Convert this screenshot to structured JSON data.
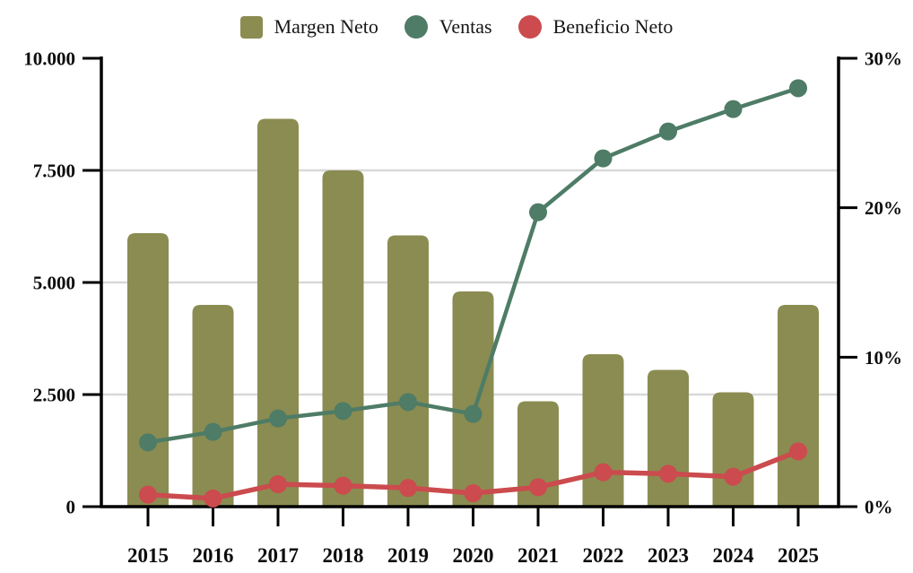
{
  "legend": [
    {
      "label": "Margen Neto",
      "color": "#8B8C51",
      "shape": "square"
    },
    {
      "label": "Ventas",
      "color": "#4E7C66",
      "shape": "circle"
    },
    {
      "label": "Beneficio Neto",
      "color": "#CB4B4E",
      "shape": "circle"
    }
  ],
  "chart_data": {
    "type": "combo-bar-line",
    "title": "",
    "categories": [
      "2015",
      "2016",
      "2017",
      "2018",
      "2019",
      "2020",
      "2021",
      "2022",
      "2023",
      "2024",
      "2025"
    ],
    "series": [
      {
        "name": "Margen Neto",
        "type": "bar",
        "axis": "left",
        "color": "#8B8C51",
        "values": [
          6100,
          4500,
          8650,
          7500,
          6050,
          4800,
          2350,
          3400,
          3050,
          2550,
          4500
        ]
      },
      {
        "name": "Ventas",
        "type": "line",
        "axis": "right",
        "unit": "%",
        "color": "#4E7C66",
        "values": [
          4.3,
          5.0,
          5.9,
          6.4,
          7.0,
          6.2,
          19.7,
          23.3,
          25.1,
          26.6,
          28.0
        ]
      },
      {
        "name": "Beneficio Neto",
        "type": "line",
        "axis": "right",
        "unit": "%",
        "color": "#CB4B4E",
        "values": [
          0.8,
          0.55,
          1.5,
          1.4,
          1.25,
          0.9,
          1.3,
          2.3,
          2.2,
          2.0,
          3.7
        ]
      }
    ],
    "left_axis": {
      "tick_labels": [
        "0",
        "2.500",
        "5.000",
        "7.500",
        "10.000"
      ],
      "tick_values": [
        0,
        2500,
        5000,
        7500,
        10000
      ],
      "range": [
        0,
        10000
      ]
    },
    "right_axis": {
      "tick_labels": [
        "0%",
        "10%",
        "20%",
        "30%"
      ],
      "tick_values": [
        0,
        10,
        20,
        30
      ],
      "range": [
        0,
        30
      ]
    },
    "gridline_values_left": [
      2500,
      5000,
      7500
    ],
    "grid": "horizontal",
    "legend_position": "top-center"
  },
  "colors": {
    "bar": "#8B8C51",
    "line_ventas": "#4E7C66",
    "line_beneficio": "#CB4B4E",
    "gridline": "#D8D8D8",
    "axis": "#000000",
    "text": "#0d0d0d",
    "background": "#ffffff"
  }
}
